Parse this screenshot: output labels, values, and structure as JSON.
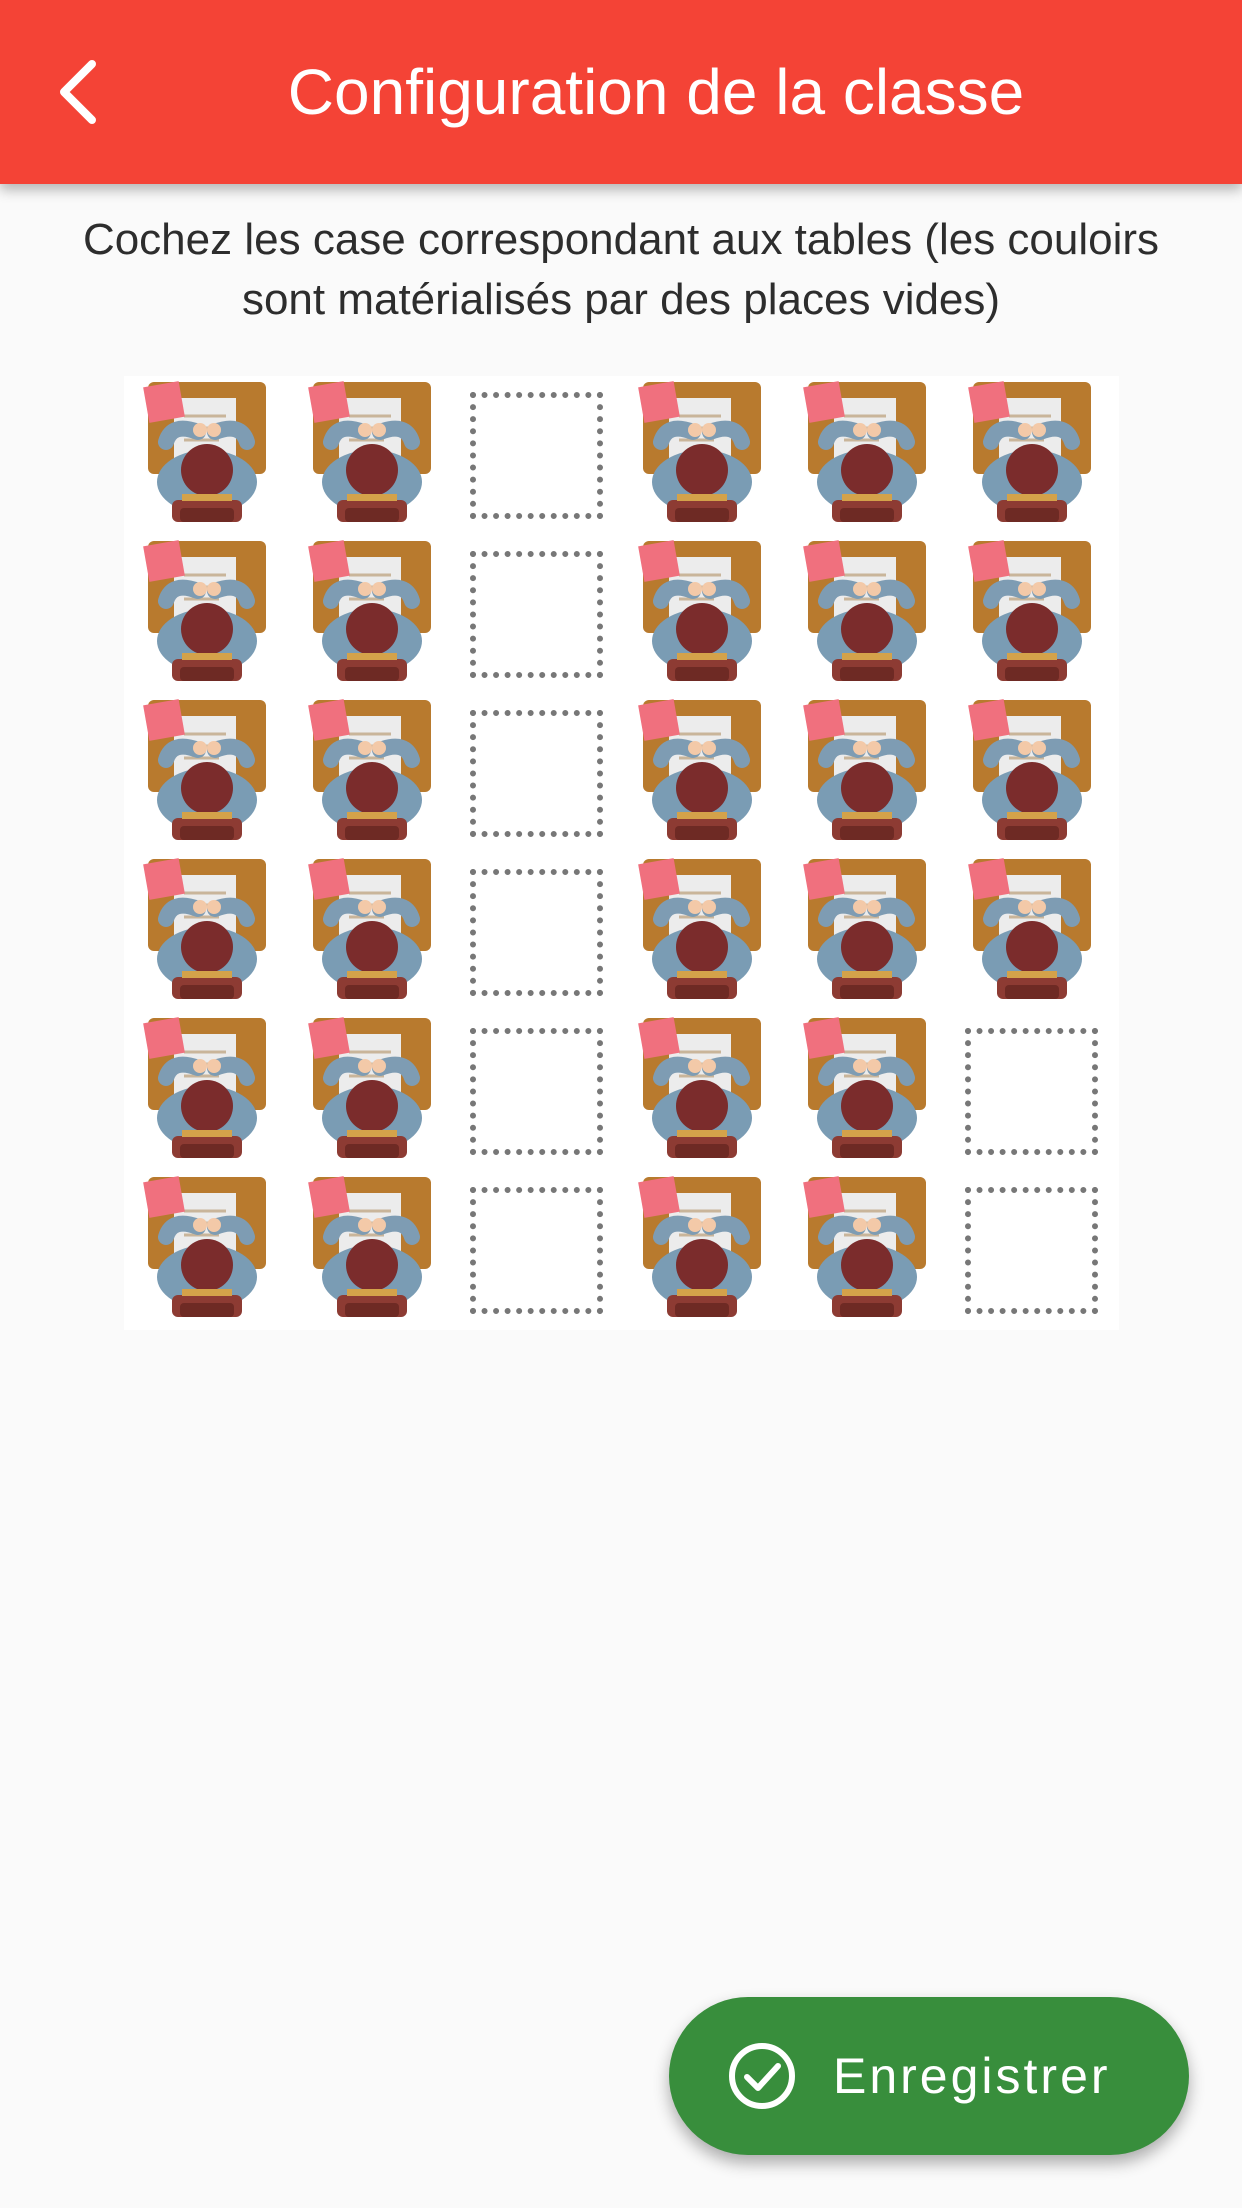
{
  "app_bar": {
    "title": "Configuration de la classe",
    "color": "#f44336",
    "back_icon": "chevron-left-icon"
  },
  "instructions": "Cochez les case correspondant aux tables (les couloirs sont matérialisés par des places vides)",
  "grid": {
    "rows": 6,
    "cols": 6,
    "cells": [
      [
        1,
        1,
        0,
        1,
        1,
        1
      ],
      [
        1,
        1,
        0,
        1,
        1,
        1
      ],
      [
        1,
        1,
        0,
        1,
        1,
        1
      ],
      [
        1,
        1,
        0,
        1,
        1,
        1
      ],
      [
        1,
        1,
        0,
        1,
        1,
        0
      ],
      [
        1,
        1,
        0,
        1,
        1,
        0
      ]
    ],
    "desk_icon": "student-desk-icon",
    "empty_icon": "empty-slot-icon"
  },
  "fab": {
    "label": "Enregistrer",
    "icon": "check-circle-icon",
    "color": "#388e3c"
  }
}
